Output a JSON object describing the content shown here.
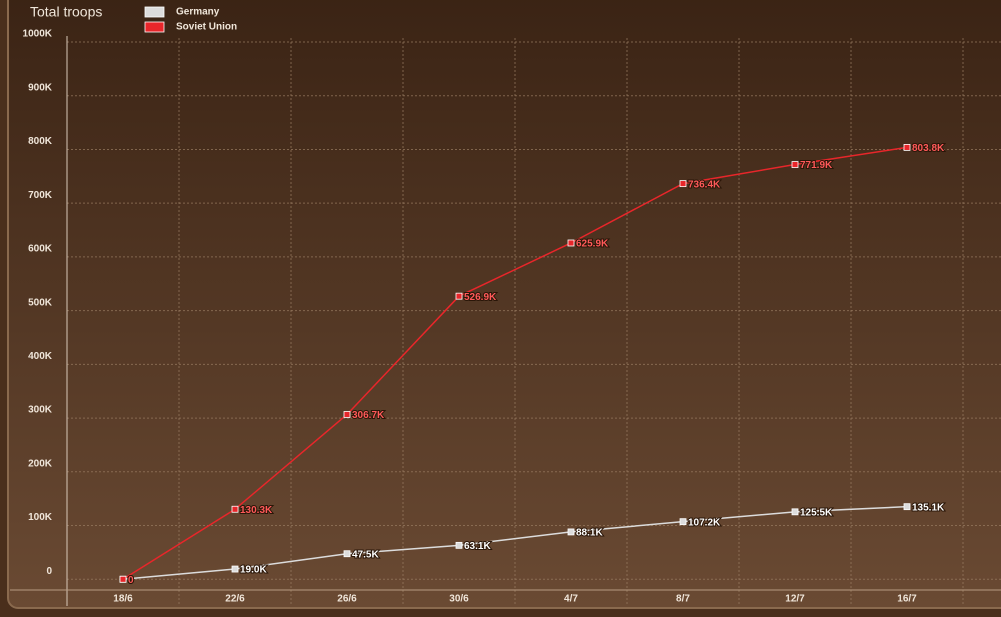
{
  "chart_data": {
    "type": "line",
    "title": "Total troops",
    "categories": [
      "18/6",
      "22/6",
      "26/6",
      "30/6",
      "4/7",
      "8/7",
      "12/7",
      "16/7"
    ],
    "series": [
      {
        "name": "Germany",
        "color": "#dcdcdc",
        "values": [
          0,
          19000,
          47500,
          63100,
          88100,
          107200,
          125500,
          135100
        ],
        "value_labels": [
          "0",
          "19.0K",
          "47.5K",
          "63.1K",
          "88.1K",
          "107.2K",
          "125.5K",
          "135.1K"
        ]
      },
      {
        "name": "Soviet Union",
        "color": "#e8262a",
        "values": [
          0,
          130300,
          306700,
          526900,
          625900,
          736400,
          771900,
          803800
        ],
        "value_labels": [
          "0",
          "130.3K",
          "306.7K",
          "526.9K",
          "625.9K",
          "736.4K",
          "771.9K",
          "803.8K"
        ]
      }
    ],
    "ylim": [
      -20000,
      1000000
    ],
    "yticks": [
      {
        "value": 0,
        "label": "0"
      },
      {
        "value": 100000,
        "label": "100K"
      },
      {
        "value": 200000,
        "label": "200K"
      },
      {
        "value": 300000,
        "label": "300K"
      },
      {
        "value": 400000,
        "label": "400K"
      },
      {
        "value": 500000,
        "label": "500K"
      },
      {
        "value": 600000,
        "label": "600K"
      },
      {
        "value": 700000,
        "label": "700K"
      },
      {
        "value": 800000,
        "label": "800K"
      },
      {
        "value": 900000,
        "label": "900K"
      },
      {
        "value": 1000000,
        "label": "1000K"
      }
    ],
    "grid": true
  }
}
